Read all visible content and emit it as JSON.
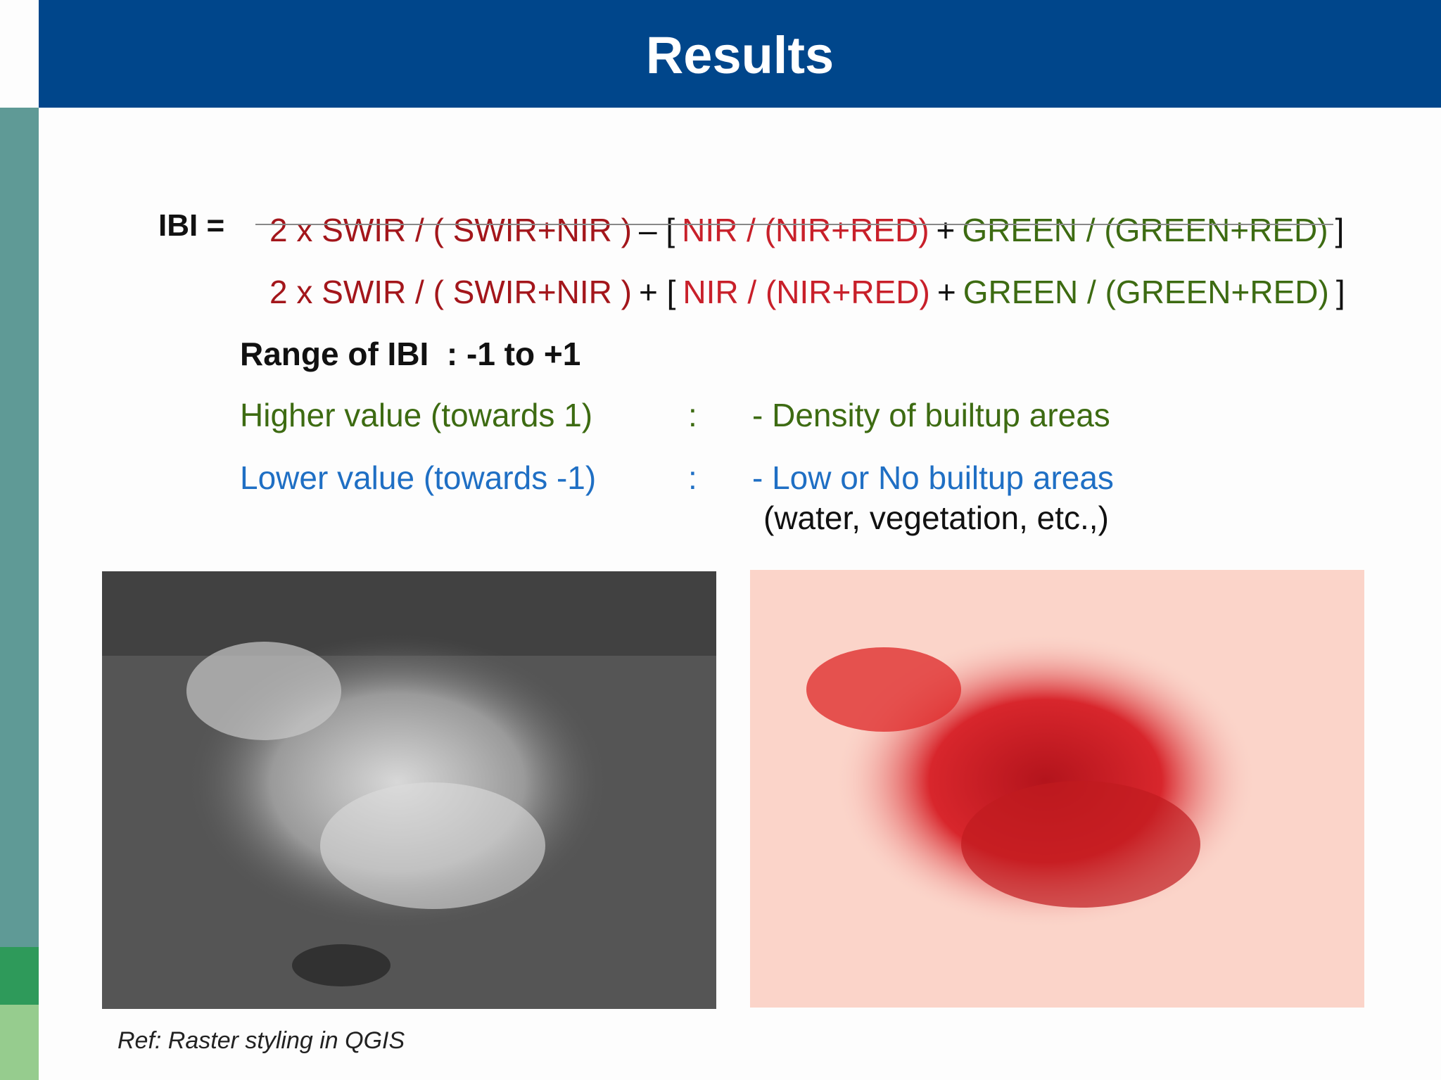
{
  "header": {
    "title": "Results"
  },
  "formula": {
    "lhs": "IBI =",
    "numerator": [
      "2 x SWIR / ( SWIR+NIR )",
      "– [",
      "NIR / (NIR+RED)",
      "+",
      "GREEN / (GREEN+RED)",
      "]"
    ],
    "denominator": [
      "2 x SWIR / ( SWIR+NIR )",
      "+ [",
      "NIR / (NIR+RED)",
      "+",
      "GREEN / (GREEN+RED)",
      "]"
    ]
  },
  "range": "Range of IBI  : -1 to +1",
  "rows": [
    {
      "label": "Higher value (towards 1)",
      "sep": ":",
      "desc": "- Density of builtup areas"
    },
    {
      "label": "Lower value (towards -1)",
      "sep": ":",
      "desc": "- Low or No builtup areas"
    }
  ],
  "note": "(water, vegetation, etc.,)",
  "reference": "Ref: Raster styling in QGIS"
}
